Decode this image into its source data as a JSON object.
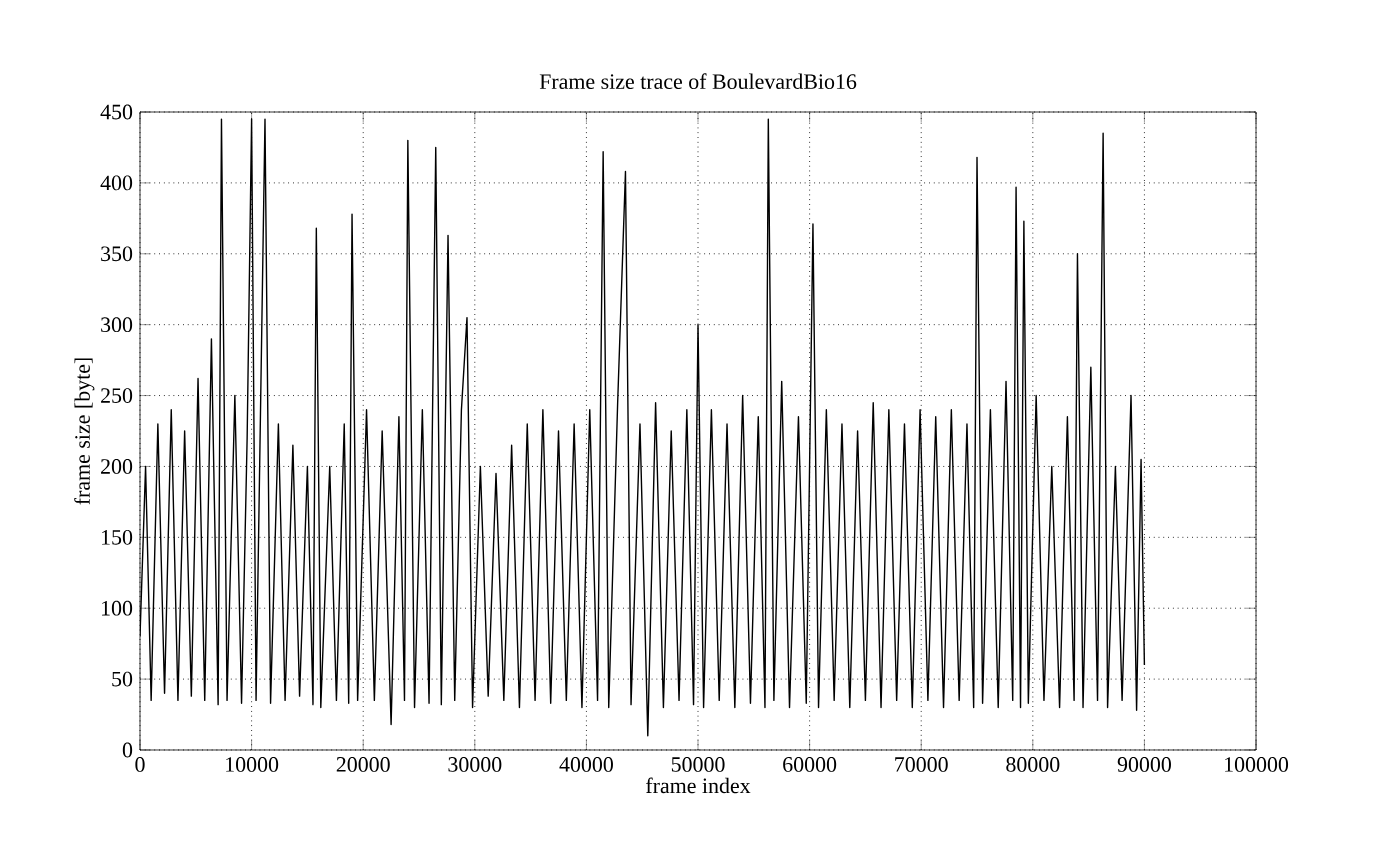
{
  "chart_data": {
    "type": "line",
    "title": "Frame size trace of BoulevardBio16",
    "xlabel": "frame index",
    "ylabel": "frame size [byte]",
    "x": [
      0,
      500,
      1000,
      1600,
      2200,
      2800,
      3400,
      4000,
      4600,
      5200,
      5800,
      6400,
      7000,
      7300,
      7800,
      8500,
      9100,
      9600,
      10000,
      10400,
      11200,
      11700,
      12400,
      13000,
      13700,
      14300,
      15000,
      15500,
      15800,
      16200,
      17000,
      17600,
      18300,
      18700,
      19000,
      19500,
      20300,
      21000,
      21700,
      22500,
      23200,
      23700,
      24000,
      24600,
      25300,
      25900,
      26500,
      27000,
      27600,
      28200,
      28800,
      29300,
      29800,
      30500,
      31200,
      31900,
      32600,
      33300,
      34000,
      34700,
      35400,
      36100,
      36800,
      37500,
      38200,
      38900,
      39600,
      40300,
      41000,
      41500,
      42000,
      42800,
      43500,
      44000,
      44800,
      45500,
      46200,
      46900,
      47600,
      48300,
      49000,
      49600,
      50000,
      50500,
      51200,
      51900,
      52600,
      53300,
      54000,
      54700,
      55400,
      56000,
      56300,
      56800,
      57500,
      58200,
      59000,
      59700,
      60300,
      60800,
      61500,
      62200,
      62900,
      63600,
      64300,
      65000,
      65700,
      66400,
      67100,
      67800,
      68500,
      69200,
      69900,
      70600,
      71300,
      72000,
      72700,
      73400,
      74100,
      74700,
      75000,
      75500,
      76200,
      76900,
      77600,
      78200,
      78500,
      78900,
      79200,
      79600,
      80300,
      81000,
      81700,
      82400,
      83100,
      83700,
      84000,
      84500,
      85200,
      85800,
      86300,
      86700,
      87400,
      88000,
      88800,
      89300,
      89700,
      90000
    ],
    "values": [
      80,
      200,
      35,
      230,
      40,
      240,
      35,
      225,
      38,
      262,
      35,
      290,
      32,
      445,
      35,
      250,
      33,
      220,
      445,
      35,
      445,
      33,
      230,
      35,
      215,
      38,
      200,
      32,
      368,
      30,
      200,
      35,
      230,
      33,
      378,
      35,
      240,
      35,
      225,
      18,
      235,
      35,
      430,
      30,
      240,
      33,
      425,
      32,
      363,
      35,
      240,
      305,
      30,
      200,
      38,
      195,
      35,
      215,
      30,
      230,
      35,
      240,
      33,
      225,
      35,
      230,
      30,
      240,
      35,
      422,
      30,
      245,
      408,
      32,
      230,
      10,
      245,
      30,
      225,
      35,
      240,
      32,
      300,
      30,
      240,
      35,
      230,
      30,
      250,
      33,
      235,
      30,
      445,
      35,
      260,
      30,
      235,
      33,
      371,
      30,
      240,
      35,
      230,
      30,
      225,
      35,
      245,
      30,
      240,
      35,
      230,
      30,
      240,
      35,
      235,
      30,
      240,
      35,
      230,
      30,
      418,
      33,
      240,
      30,
      260,
      35,
      397,
      30,
      373,
      33,
      250,
      35,
      200,
      30,
      235,
      35,
      350,
      30,
      270,
      35,
      435,
      30,
      200,
      35,
      250,
      28,
      205,
      60
    ],
    "color": "#000000",
    "xlim": [
      0,
      100000
    ],
    "ylim": [
      0,
      450
    ],
    "xticks": [
      0,
      10000,
      20000,
      30000,
      40000,
      50000,
      60000,
      70000,
      80000,
      90000,
      100000
    ],
    "yticks": [
      0,
      50,
      100,
      150,
      200,
      250,
      300,
      350,
      400,
      450
    ],
    "grid": true
  }
}
